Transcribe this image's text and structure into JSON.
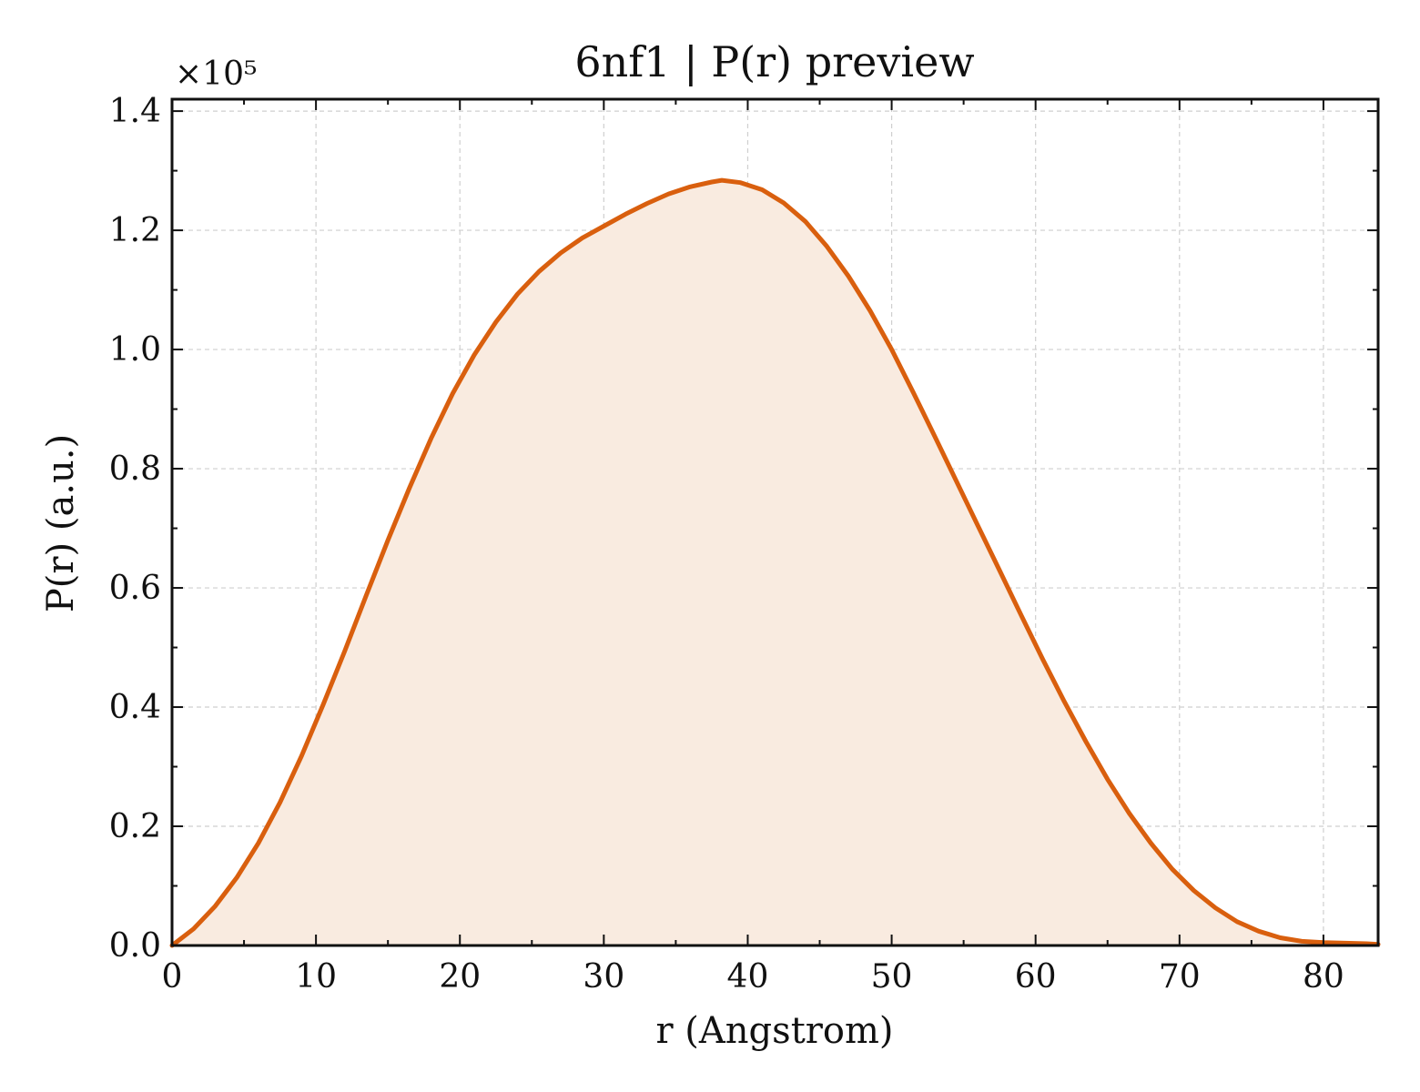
{
  "chart_data": {
    "type": "area",
    "title": "6nf1 | P(r) preview",
    "xlabel": "r (Angstrom)",
    "ylabel": "P(r) (a.u.)",
    "y_multiplier_label": "×10⁵",
    "xlim": [
      0,
      83.8
    ],
    "ylim": [
      0,
      1.42
    ],
    "xticks": [
      0,
      10,
      20,
      30,
      40,
      50,
      60,
      70,
      80
    ],
    "xtick_labels": [
      "0",
      "10",
      "20",
      "30",
      "40",
      "50",
      "60",
      "70",
      "80"
    ],
    "yticks": [
      0.0,
      0.2,
      0.4,
      0.6,
      0.8,
      1.0,
      1.2,
      1.4
    ],
    "ytick_labels": [
      "0.0",
      "0.2",
      "0.4",
      "0.6",
      "0.8",
      "1.0",
      "1.2",
      "1.4"
    ],
    "grid": true,
    "colors": {
      "line": "#d95f0e",
      "fill": "#f9ebe0"
    },
    "series": [
      {
        "x": [
          0,
          1.5,
          3.0,
          4.5,
          6.0,
          7.5,
          9.0,
          10.5,
          12.0,
          13.5,
          15.0,
          16.5,
          18.0,
          19.5,
          21.0,
          22.5,
          24.0,
          25.5,
          27.0,
          28.5,
          30.0,
          31.5,
          33.0,
          34.5,
          36.0,
          37.5,
          38.2,
          39.5,
          41.0,
          42.5,
          44.0,
          45.5,
          47.0,
          48.5,
          50.0,
          51.5,
          53.0,
          54.5,
          56.0,
          57.5,
          59.0,
          60.5,
          62.0,
          63.5,
          65.0,
          66.5,
          68.0,
          69.5,
          71.0,
          72.5,
          74.0,
          75.5,
          77.0,
          78.5,
          80.0,
          81.5,
          83.0,
          83.8
        ],
        "y": [
          0.0,
          0.028,
          0.066,
          0.114,
          0.172,
          0.24,
          0.318,
          0.404,
          0.494,
          0.588,
          0.68,
          0.768,
          0.851,
          0.926,
          0.991,
          1.046,
          1.093,
          1.131,
          1.162,
          1.187,
          1.207,
          1.227,
          1.245,
          1.261,
          1.273,
          1.281,
          1.284,
          1.28,
          1.268,
          1.246,
          1.215,
          1.173,
          1.123,
          1.065,
          1.0,
          0.928,
          0.854,
          0.779,
          0.704,
          0.629,
          0.554,
          0.48,
          0.409,
          0.342,
          0.279,
          0.222,
          0.172,
          0.128,
          0.092,
          0.063,
          0.04,
          0.024,
          0.013,
          0.007,
          0.005,
          0.004,
          0.003,
          0.002
        ]
      }
    ]
  }
}
